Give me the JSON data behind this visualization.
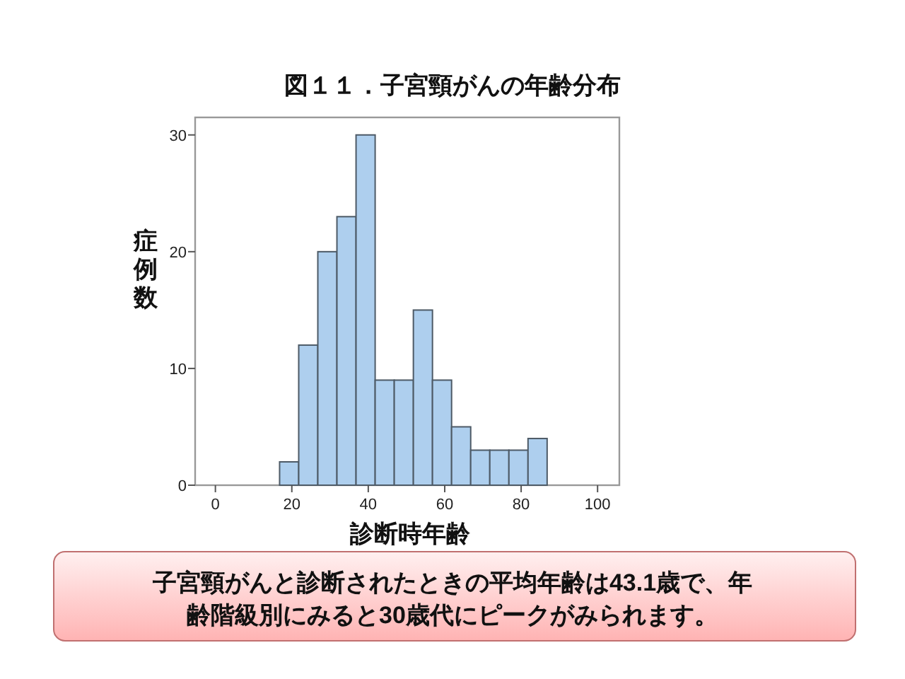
{
  "chart_data": {
    "type": "histogram",
    "title": "図１１．子宮頸がんの年齢分布",
    "xlabel": "診断時年齢",
    "ylabel": "症例数",
    "bins": [
      16.8,
      21.8,
      26.8,
      31.8,
      36.8,
      41.8,
      46.8,
      51.8,
      56.8,
      61.8,
      66.8,
      71.8,
      76.8,
      81.8,
      86.8
    ],
    "values": [
      2,
      12,
      20,
      23,
      30,
      9,
      9,
      15,
      9,
      5,
      3,
      3,
      3,
      4
    ],
    "color": "#aecfee",
    "xlim": [
      -5.3,
      105.7
    ],
    "xticks": [
      0,
      20,
      40,
      60,
      80,
      100
    ],
    "ylim": [
      0,
      31.5
    ],
    "yticks": [
      0,
      10,
      20,
      30
    ],
    "grid": false,
    "annotations": [
      "子宮頸がんと診断されたときの平均年齢は43.1歳で、年齢階級別にみると30歳代にピークがみられます。"
    ]
  }
}
